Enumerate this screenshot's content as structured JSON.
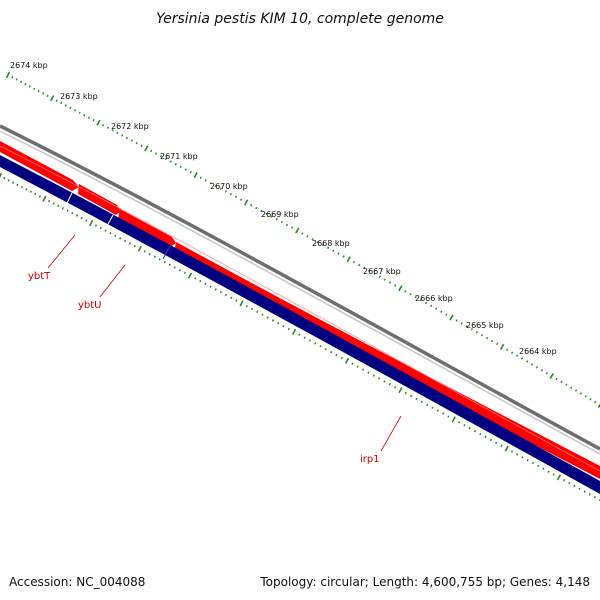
{
  "title": "Yersinia pestis KIM 10, complete genome",
  "footer": {
    "accession": "Accession: NC_004088",
    "summary": "Topology: circular; Length: 4,600,755 bp; Genes: 4,148"
  },
  "colors": {
    "backbone": "#7f7f7f",
    "forward_genes": "#ff0000",
    "reverse_genes": "#000080",
    "ticks": "#228b22",
    "gene_labels": "#cc0000",
    "label_lines": "#cc0000"
  },
  "tick_labels": [
    "2674 kbp",
    "2673 kbp",
    "2672 kbp",
    "2671 kbp",
    "2670 kbp",
    "2669 kbp",
    "2668 kbp",
    "2667 kbp",
    "2666 kbp",
    "2665 kbp",
    "2664 kbp"
  ],
  "gene_labels": [
    "ybtT",
    "ybtU",
    "irp1"
  ]
}
